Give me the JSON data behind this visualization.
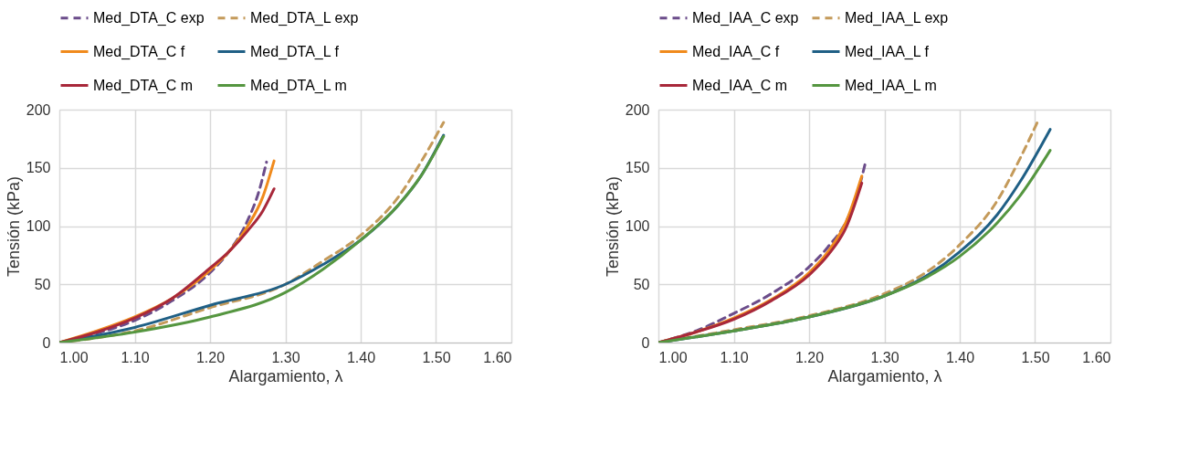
{
  "chart_data": [
    {
      "type": "line",
      "xlabel": "Alargamiento, λ",
      "ylabel": "Tensión (kPa)",
      "xlim": [
        1.0,
        1.6
      ],
      "xticks": [
        {
          "value": 1.0,
          "label": "1.00"
        },
        {
          "value": 1.1,
          "label": "1.10"
        },
        {
          "value": 1.2,
          "label": "1.20"
        },
        {
          "value": 1.3,
          "label": "1.30"
        },
        {
          "value": 1.4,
          "label": "1.40"
        },
        {
          "value": 1.5,
          "label": "1.50"
        },
        {
          "value": 1.6,
          "label": "1.60"
        }
      ],
      "ylim": [
        0,
        200
      ],
      "yticks": [
        0,
        50,
        100,
        150,
        200
      ],
      "grid": true,
      "legend": "top",
      "series": [
        {
          "name": "Med_DTA_C exp",
          "color": "#6b4c8a",
          "line_style": "dashed",
          "x": [
            1.0,
            1.05,
            1.1,
            1.15,
            1.2,
            1.225,
            1.25,
            1.265,
            1.275
          ],
          "values": [
            0,
            8,
            19,
            36,
            60,
            78,
            105,
            130,
            155
          ]
        },
        {
          "name": "Med_DTA_L exp",
          "color": "#c49a5a",
          "line_style": "dashed",
          "x": [
            1.0,
            1.1,
            1.2,
            1.3,
            1.35,
            1.4,
            1.45,
            1.48,
            1.51
          ],
          "values": [
            0,
            10,
            30,
            50,
            70,
            92,
            125,
            155,
            189
          ]
        },
        {
          "name": "Med_DTA_C f",
          "color": "#f08a1c",
          "line_style": "solid",
          "x": [
            1.0,
            1.05,
            1.1,
            1.15,
            1.2,
            1.225,
            1.25,
            1.27,
            1.285
          ],
          "values": [
            0,
            10,
            22,
            38,
            62,
            78,
            100,
            125,
            156
          ]
        },
        {
          "name": "Med_DTA_L f",
          "color": "#1f5f85",
          "line_style": "solid",
          "x": [
            1.0,
            1.1,
            1.2,
            1.3,
            1.35,
            1.4,
            1.45,
            1.48,
            1.51
          ],
          "values": [
            0,
            13,
            32,
            50,
            67,
            88,
            118,
            143,
            178
          ]
        },
        {
          "name": "Med_DTA_C m",
          "color": "#a8283a",
          "line_style": "solid",
          "x": [
            1.0,
            1.05,
            1.1,
            1.15,
            1.2,
            1.225,
            1.25,
            1.27,
            1.285
          ],
          "values": [
            0,
            9,
            21,
            38,
            64,
            78,
            96,
            113,
            132
          ]
        },
        {
          "name": "Med_DTA_L m",
          "color": "#559640",
          "line_style": "solid",
          "x": [
            1.0,
            1.1,
            1.2,
            1.3,
            1.35,
            1.4,
            1.45,
            1.48,
            1.51
          ],
          "values": [
            0,
            9,
            22,
            43,
            63,
            88,
            118,
            143,
            177
          ]
        }
      ]
    },
    {
      "type": "line",
      "xlabel": "Alargamiento, λ",
      "ylabel": "Tensión (kPa)",
      "xlim": [
        1.0,
        1.6
      ],
      "xticks": [
        {
          "value": 1.0,
          "label": "1.00"
        },
        {
          "value": 1.1,
          "label": "1.10"
        },
        {
          "value": 1.2,
          "label": "1.20"
        },
        {
          "value": 1.3,
          "label": "1.30"
        },
        {
          "value": 1.4,
          "label": "1.40"
        },
        {
          "value": 1.5,
          "label": "1.50"
        },
        {
          "value": 1.6,
          "label": "1.60"
        }
      ],
      "ylim": [
        0,
        200
      ],
      "yticks": [
        0,
        50,
        100,
        150,
        200
      ],
      "grid": true,
      "legend": "top",
      "series": [
        {
          "name": "Med_IAA_C exp",
          "color": "#6b4c8a",
          "line_style": "dashed",
          "x": [
            1.0,
            1.05,
            1.1,
            1.15,
            1.2,
            1.225,
            1.25,
            1.265,
            1.275
          ],
          "values": [
            0,
            10,
            25,
            42,
            65,
            82,
            105,
            130,
            155
          ]
        },
        {
          "name": "Med_IAA_L exp",
          "color": "#c49a5a",
          "line_style": "dashed",
          "x": [
            1.0,
            1.1,
            1.2,
            1.3,
            1.35,
            1.4,
            1.45,
            1.48,
            1.505
          ],
          "values": [
            0,
            11,
            23,
            42,
            58,
            84,
            122,
            158,
            192
          ]
        },
        {
          "name": "Med_IAA_C f",
          "color": "#f08a1c",
          "line_style": "solid",
          "x": [
            1.0,
            1.05,
            1.1,
            1.15,
            1.2,
            1.225,
            1.25,
            1.27
          ],
          "values": [
            0,
            9,
            21,
            37,
            60,
            78,
            105,
            143
          ]
        },
        {
          "name": "Med_IAA_L f",
          "color": "#1f5f85",
          "line_style": "solid",
          "x": [
            1.0,
            1.1,
            1.2,
            1.3,
            1.35,
            1.4,
            1.45,
            1.48,
            1.52
          ],
          "values": [
            0,
            10,
            22,
            40,
            55,
            78,
            110,
            138,
            183
          ]
        },
        {
          "name": "Med_IAA_C m",
          "color": "#a8283a",
          "line_style": "solid",
          "x": [
            1.0,
            1.05,
            1.1,
            1.15,
            1.2,
            1.225,
            1.25,
            1.27
          ],
          "values": [
            0,
            9,
            20,
            36,
            58,
            75,
            100,
            137
          ]
        },
        {
          "name": "Med_IAA_L m",
          "color": "#559640",
          "line_style": "solid",
          "x": [
            1.0,
            1.1,
            1.2,
            1.3,
            1.35,
            1.4,
            1.45,
            1.48,
            1.52
          ],
          "values": [
            0,
            10,
            22,
            40,
            54,
            74,
            103,
            126,
            165
          ]
        }
      ]
    }
  ]
}
